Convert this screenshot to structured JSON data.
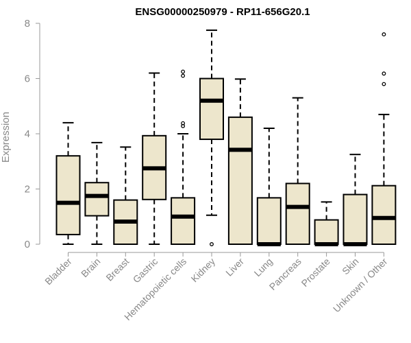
{
  "chart_data": {
    "type": "boxplot",
    "title": "ENSG00000250979 - RP11-656G20.1",
    "ylabel": "Expression",
    "ylim": [
      0,
      8
    ],
    "yticks": [
      0,
      2,
      4,
      6,
      8
    ],
    "box_fill": "#ede6cc",
    "categories": [
      "Bladder",
      "Brain",
      "Breast",
      "Gastric",
      "Hematopoietic cells",
      "Kidney",
      "Liver",
      "Lung",
      "Pancreas",
      "Prostate",
      "Skin",
      "Unknown / Other"
    ],
    "boxes": [
      {
        "whisker_low": 0.0,
        "q1": 0.35,
        "median": 1.5,
        "q3": 3.2,
        "whisker_high": 4.4,
        "outliers": []
      },
      {
        "whisker_low": 0.0,
        "q1": 1.03,
        "median": 1.75,
        "q3": 2.23,
        "whisker_high": 3.68,
        "outliers": []
      },
      {
        "whisker_low": 0.0,
        "q1": 0.0,
        "median": 0.82,
        "q3": 1.6,
        "whisker_high": 3.52,
        "outliers": []
      },
      {
        "whisker_low": 0.0,
        "q1": 1.62,
        "median": 2.75,
        "q3": 3.93,
        "whisker_high": 6.2,
        "outliers": []
      },
      {
        "whisker_low": 0.0,
        "q1": 0.0,
        "median": 1.0,
        "q3": 1.68,
        "whisker_high": 4.0,
        "outliers": [
          4.28,
          4.38,
          6.1,
          6.25
        ]
      },
      {
        "whisker_low": 1.05,
        "q1": 3.8,
        "median": 5.2,
        "q3": 6.0,
        "whisker_high": 7.75,
        "outliers": [
          0.0
        ]
      },
      {
        "whisker_low": 0.0,
        "q1": 0.0,
        "median": 3.42,
        "q3": 4.6,
        "whisker_high": 5.98,
        "outliers": []
      },
      {
        "whisker_low": 0.0,
        "q1": 0.0,
        "median": 0.0,
        "q3": 1.68,
        "whisker_high": 4.2,
        "outliers": []
      },
      {
        "whisker_low": 0.0,
        "q1": 0.0,
        "median": 1.35,
        "q3": 2.2,
        "whisker_high": 5.3,
        "outliers": []
      },
      {
        "whisker_low": 0.0,
        "q1": 0.0,
        "median": 0.0,
        "q3": 0.88,
        "whisker_high": 1.53,
        "outliers": []
      },
      {
        "whisker_low": 0.0,
        "q1": 0.0,
        "median": 0.0,
        "q3": 1.8,
        "whisker_high": 3.25,
        "outliers": []
      },
      {
        "whisker_low": 0.0,
        "q1": 0.0,
        "median": 0.95,
        "q3": 2.12,
        "whisker_high": 4.7,
        "outliers": [
          5.8,
          6.18,
          7.6
        ]
      }
    ]
  }
}
